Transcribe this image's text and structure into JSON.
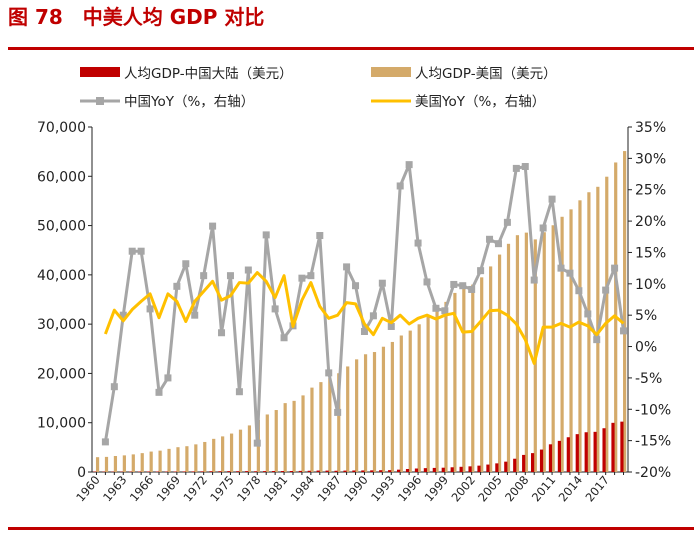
{
  "title": "图 78　中美人均 GDP 对比",
  "colors": {
    "china_bar": "#c00000",
    "us_bar": "#d4aa6a",
    "china_yoy": "#a6a6a6",
    "us_yoy": "#ffc000",
    "accent": "#c00000"
  },
  "legend": [
    {
      "label": "人均GDP-中国大陆（美元）",
      "key": "china_bar",
      "shape": "bar"
    },
    {
      "label": "人均GDP-美国（美元）",
      "key": "us_bar",
      "shape": "bar"
    },
    {
      "label": "中国YoY（%，右轴）",
      "key": "china_yoy",
      "shape": "line-square"
    },
    {
      "label": "美国YoY（%，右轴）",
      "key": "us_yoy",
      "shape": "line"
    }
  ],
  "chart_data": {
    "type": "bar+line",
    "title": "图 78　中美人均 GDP 对比",
    "legend_placement": "top",
    "grid": false,
    "y_left": {
      "range": [
        0,
        70000
      ],
      "ticks": [
        "0",
        "10,000",
        "20,000",
        "30,000",
        "40,000",
        "50,000",
        "60,000",
        "70,000"
      ]
    },
    "y_right": {
      "range": [
        -20,
        35
      ],
      "ticks": [
        "-20%",
        "-15%",
        "-10%",
        "-5%",
        "0%",
        "5%",
        "10%",
        "15%",
        "20%",
        "25%",
        "30%",
        "35%"
      ]
    },
    "x_tick_labels": [
      "1960",
      "1963",
      "1966",
      "1969",
      "1972",
      "1975",
      "1978",
      "1981",
      "1984",
      "1987",
      "1990",
      "1993",
      "1996",
      "1999",
      "2002",
      "2005",
      "2008",
      "2011",
      "2014",
      "2017"
    ],
    "years": [
      1960,
      1961,
      1962,
      1963,
      1964,
      1965,
      1966,
      1967,
      1968,
      1969,
      1970,
      1971,
      1972,
      1973,
      1974,
      1975,
      1976,
      1977,
      1978,
      1979,
      1980,
      1981,
      1982,
      1983,
      1984,
      1985,
      1986,
      1987,
      1988,
      1989,
      1990,
      1991,
      1992,
      1993,
      1994,
      1995,
      1996,
      1997,
      1998,
      1999,
      2000,
      2001,
      2002,
      2003,
      2004,
      2005,
      2006,
      2007,
      2008,
      2009,
      2010,
      2011,
      2012,
      2013,
      2014,
      2015,
      2016,
      2017,
      2018,
      2019
    ],
    "series": [
      {
        "name": "人均GDP-中国大陆（美元）",
        "type": "bar",
        "axis": "left",
        "values": [
          90,
          76,
          70,
          74,
          85,
          98,
          104,
          97,
          91,
          100,
          113,
          119,
          132,
          157,
          160,
          178,
          165,
          185,
          156,
          184,
          195,
          197,
          203,
          225,
          251,
          294,
          282,
          252,
          284,
          311,
          318,
          333,
          366,
          377,
          473,
          610,
          709,
          782,
          829,
          873,
          959,
          1053,
          1149,
          1289,
          1509,
          1753,
          2099,
          2694,
          3468,
          3832,
          4550,
          5618,
          6317,
          7051,
          7679,
          8067,
          8148,
          8879,
          9977,
          10217
        ]
      },
      {
        "name": "人均GDP-美国（美元）",
        "type": "bar",
        "axis": "left",
        "values": [
          3007,
          3067,
          3244,
          3375,
          3574,
          3828,
          4146,
          4336,
          4696,
          5032,
          5234,
          5609,
          6094,
          6726,
          7226,
          7801,
          8592,
          9453,
          10565,
          11674,
          12575,
          13976,
          14434,
          15544,
          17121,
          18237,
          19071,
          20039,
          21417,
          22857,
          23889,
          24342,
          25419,
          26387,
          27695,
          28691,
          29968,
          31459,
          32854,
          34515,
          36335,
          37133,
          38023,
          39497,
          41712,
          44115,
          46299,
          48050,
          48570,
          47195,
          48651,
          50066,
          51784,
          53291,
          55124,
          56763,
          57867,
          59915,
          62805,
          65118
        ]
      },
      {
        "name": "中国YoY（%，右轴）",
        "type": "line",
        "axis": "right",
        "values": [
          null,
          -15.2,
          -6.4,
          5.0,
          15.2,
          15.2,
          6.0,
          -7.3,
          -5.0,
          9.6,
          13.2,
          5.0,
          11.3,
          19.2,
          2.2,
          11.3,
          -7.2,
          12.2,
          -15.4,
          17.8,
          6.0,
          1.4,
          3.3,
          10.9,
          11.3,
          17.7,
          -4.2,
          -10.5,
          12.7,
          9.7,
          2.4,
          4.9,
          10.1,
          3.2,
          25.6,
          29.0,
          16.5,
          10.3,
          6.1,
          5.7,
          9.9,
          9.7,
          9.1,
          12.1,
          17.1,
          16.4,
          19.8,
          28.4,
          28.7,
          10.6,
          18.9,
          23.5,
          12.5,
          11.7,
          8.9,
          5.2,
          1.1,
          9.0,
          12.5,
          2.5
        ]
      },
      {
        "name": "美国YoY（%，右轴）",
        "type": "line",
        "axis": "right",
        "values": [
          null,
          2.0,
          5.8,
          4.1,
          5.9,
          7.2,
          8.4,
          4.6,
          8.4,
          7.2,
          4.0,
          7.2,
          8.8,
          10.4,
          7.4,
          8.1,
          10.2,
          10.1,
          11.8,
          10.4,
          7.8,
          11.3,
          3.2,
          7.4,
          10.2,
          6.4,
          4.5,
          5.0,
          7.0,
          6.8,
          3.6,
          1.9,
          4.5,
          3.8,
          5.0,
          3.6,
          4.5,
          5.0,
          4.4,
          5.0,
          5.3,
          2.3,
          2.4,
          4.0,
          5.7,
          5.8,
          5.0,
          3.6,
          1.1,
          -2.7,
          3.1,
          3.1,
          3.7,
          3.1,
          3.9,
          3.3,
          1.9,
          3.7,
          4.9,
          3.7
        ]
      }
    ]
  }
}
